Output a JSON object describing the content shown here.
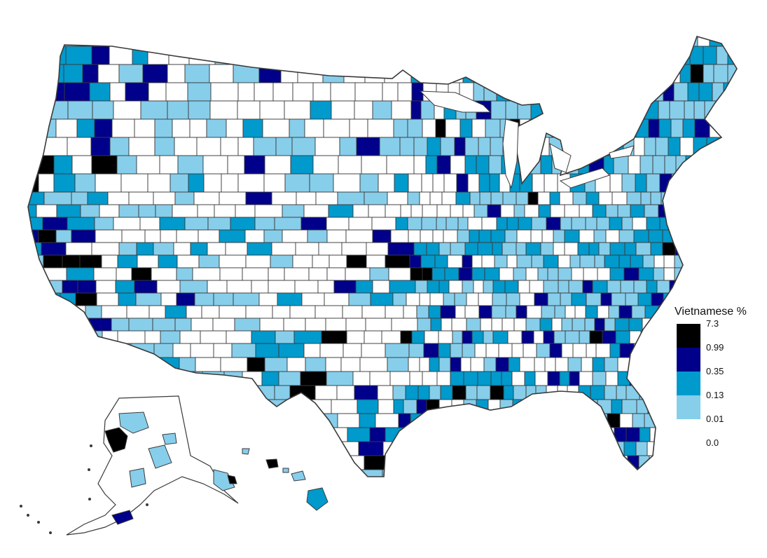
{
  "legend": {
    "title": "Vietnamese %",
    "breaks": [
      "7.3",
      "0.99",
      "0.35",
      "0.13",
      "0.01",
      "0.0"
    ],
    "bins": [
      {
        "range": "0.99–7.3",
        "color": "#000000"
      },
      {
        "range": "0.35–0.99",
        "color": "#00008b"
      },
      {
        "range": "0.13–0.35",
        "color": "#009acd"
      },
      {
        "range": "0.01–0.13",
        "color": "#87ceeb"
      },
      {
        "range": "0.0–0.01",
        "color": "#ffffff"
      }
    ]
  },
  "colors": {
    "border": "#3a3a3a",
    "bin_5": "#000000",
    "bin_4": "#00008b",
    "bin_3": "#009acd",
    "bin_2": "#87ceeb",
    "bin_1": "#ffffff"
  },
  "map": {
    "type": "choropleth",
    "geography": "United States counties",
    "insets": [
      "Alaska",
      "Hawaii"
    ]
  }
}
